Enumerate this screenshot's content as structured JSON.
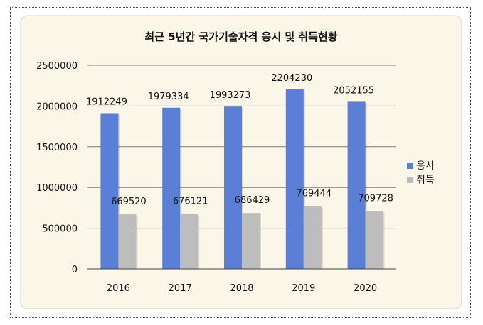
{
  "chart_data": {
    "type": "bar",
    "title": "최근 5년간 국가기술자격 응시 및 취득현황",
    "categories": [
      "2016",
      "2017",
      "2018",
      "2019",
      "2020"
    ],
    "series": [
      {
        "name": "응시",
        "color": "#5b7fd6",
        "values": [
          1912249,
          1979334,
          1993273,
          2204230,
          2052155
        ]
      },
      {
        "name": "취득",
        "color": "#bdbdbd",
        "values": [
          669520,
          676121,
          686429,
          769444,
          709728
        ]
      }
    ],
    "yticks": [
      "0",
      "500000",
      "1000000",
      "1500000",
      "2000000",
      "2500000"
    ],
    "ylim": [
      0,
      2500000
    ],
    "grid": true,
    "legend": "right",
    "background": "#faf6e8"
  }
}
